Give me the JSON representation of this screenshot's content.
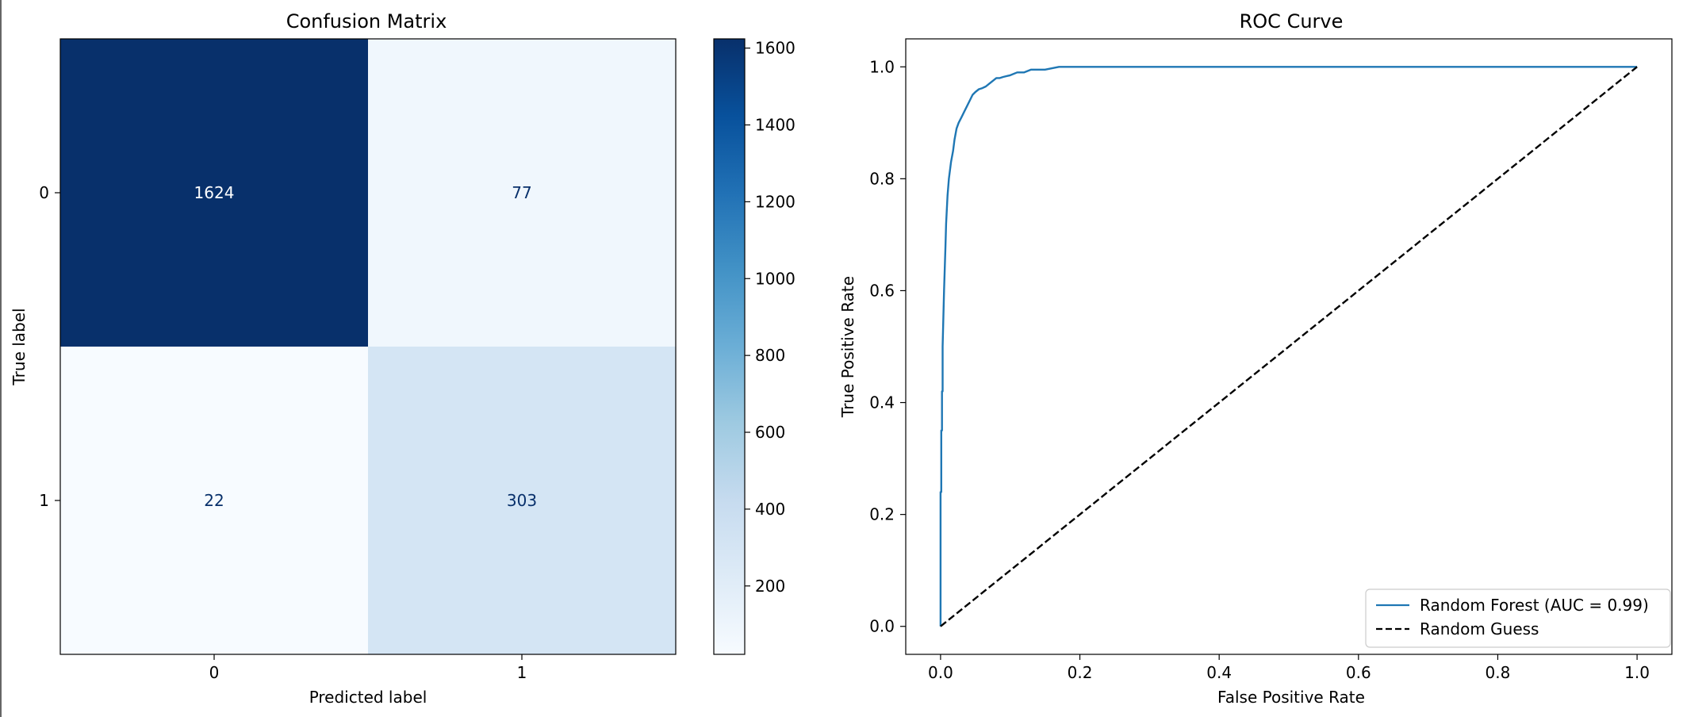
{
  "chart_data": [
    {
      "type": "heatmap",
      "title": "Confusion Matrix",
      "xlabel": "Predicted label",
      "ylabel": "True label",
      "x_categories": [
        "0",
        "1"
      ],
      "y_categories": [
        "0",
        "1"
      ],
      "values": [
        [
          1624,
          77
        ],
        [
          22,
          303
        ]
      ],
      "colormap": "Blues",
      "color_range": [
        22,
        1624
      ],
      "colorbar_ticks": [
        200,
        400,
        600,
        800,
        1000,
        1200,
        1400,
        1600
      ],
      "low_text_color": "#08306b",
      "high_text_color": "#ffffff",
      "grid": false
    },
    {
      "type": "line",
      "title": "ROC Curve",
      "xlabel": "False Positive Rate",
      "ylabel": "True Positive Rate",
      "xlim": [
        -0.05,
        1.05
      ],
      "ylim": [
        -0.05,
        1.05
      ],
      "xticks": [
        0.0,
        0.2,
        0.4,
        0.6,
        0.8,
        1.0
      ],
      "yticks": [
        0.0,
        0.2,
        0.4,
        0.6,
        0.8,
        1.0
      ],
      "grid": false,
      "legend_position": "lower-right",
      "series": [
        {
          "name": "Random Forest (AUC = 0.99)",
          "color": "#1f77b4",
          "style": "solid",
          "x": [
            0.0,
            0.0,
            0.001,
            0.001,
            0.002,
            0.002,
            0.003,
            0.003,
            0.004,
            0.005,
            0.006,
            0.007,
            0.008,
            0.01,
            0.012,
            0.015,
            0.018,
            0.02,
            0.023,
            0.026,
            0.03,
            0.034,
            0.038,
            0.042,
            0.046,
            0.05,
            0.055,
            0.06,
            0.065,
            0.07,
            0.075,
            0.08,
            0.085,
            0.09,
            0.1,
            0.11,
            0.12,
            0.13,
            0.15,
            0.17,
            0.18,
            1.0
          ],
          "y": [
            0.0,
            0.24,
            0.24,
            0.35,
            0.35,
            0.42,
            0.42,
            0.5,
            0.55,
            0.6,
            0.64,
            0.68,
            0.72,
            0.77,
            0.8,
            0.83,
            0.85,
            0.87,
            0.89,
            0.9,
            0.91,
            0.92,
            0.93,
            0.94,
            0.95,
            0.955,
            0.96,
            0.962,
            0.965,
            0.97,
            0.975,
            0.98,
            0.98,
            0.982,
            0.985,
            0.99,
            0.99,
            0.995,
            0.995,
            1.0,
            1.0,
            1.0
          ]
        },
        {
          "name": "Random Guess",
          "color": "#000000",
          "style": "dashed",
          "x": [
            0.0,
            1.0
          ],
          "y": [
            0.0,
            1.0
          ]
        }
      ]
    }
  ]
}
